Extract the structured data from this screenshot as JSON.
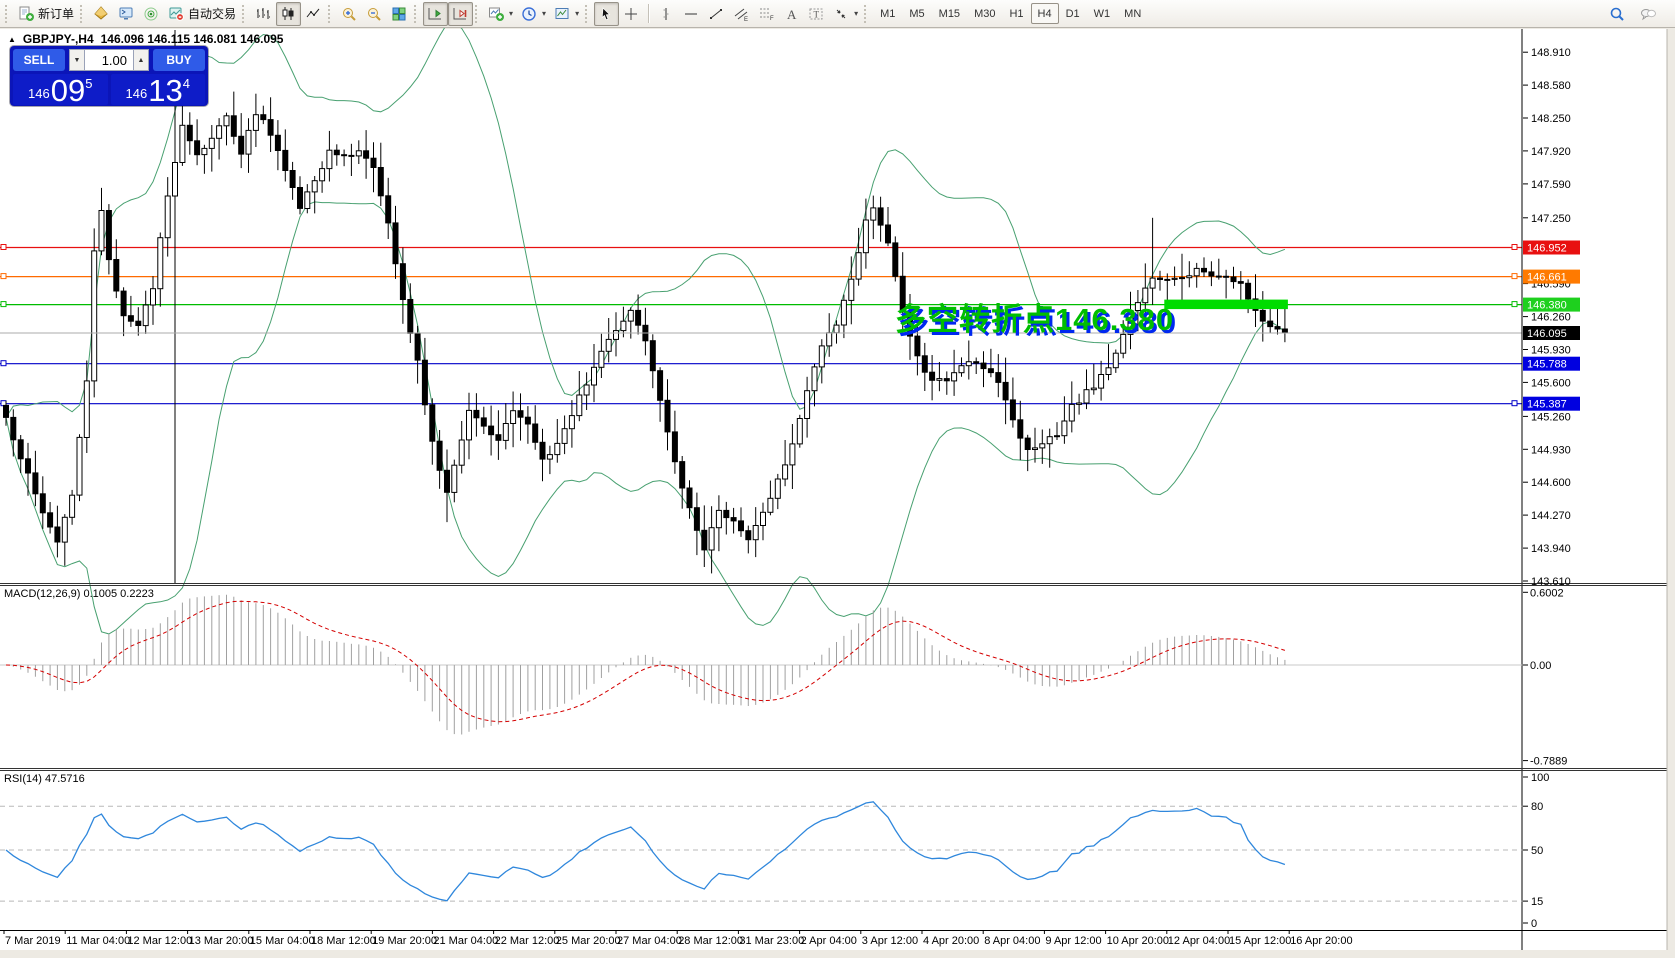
{
  "toolbar": {
    "groups": [
      {
        "name": "orders",
        "items": [
          {
            "icon": "new-order",
            "name": "new-order-button",
            "label": "新订单"
          }
        ]
      },
      {
        "name": "services",
        "items": [
          {
            "icon": "profile",
            "name": "profiles-button"
          },
          {
            "icon": "terminal",
            "name": "terminal-button"
          },
          {
            "icon": "signals",
            "name": "signals-button"
          },
          {
            "icon": "autotrade",
            "name": "autotrade-button",
            "label": "自动交易"
          }
        ]
      },
      {
        "name": "chart-types",
        "items": [
          {
            "icon": "bars",
            "name": "bar-chart-button"
          },
          {
            "icon": "candles",
            "name": "candlestick-chart-button",
            "active": true
          },
          {
            "icon": "line-chart",
            "name": "line-chart-button"
          }
        ]
      },
      {
        "name": "zoom",
        "items": [
          {
            "icon": "zoom-in",
            "name": "zoom-in-button"
          },
          {
            "icon": "zoom-out",
            "name": "zoom-out-button"
          },
          {
            "icon": "tile-windows",
            "name": "tile-windows-button"
          }
        ]
      },
      {
        "name": "scroll",
        "items": [
          {
            "icon": "auto-scroll",
            "name": "auto-scroll-button",
            "active": true
          },
          {
            "icon": "chart-shift",
            "name": "chart-shift-button",
            "active": true
          }
        ]
      },
      {
        "name": "objects",
        "items": [
          {
            "icon": "indicators",
            "name": "indicators-button",
            "caret": true
          },
          {
            "icon": "periods",
            "name": "periods-button",
            "caret": true
          },
          {
            "icon": "templates",
            "name": "templates-button",
            "caret": true
          }
        ]
      },
      {
        "name": "drawing",
        "items": [
          {
            "icon": "cursor",
            "name": "cursor-button",
            "active": true
          },
          {
            "icon": "crosshair",
            "name": "crosshair-button"
          },
          {
            "icon": "sep"
          },
          {
            "icon": "vline-tool",
            "name": "vertical-line-tool-button"
          },
          {
            "icon": "hline-tool",
            "name": "horizontal-line-tool-button"
          },
          {
            "icon": "trendline-tool",
            "name": "trendline-tool-button"
          },
          {
            "icon": "channel-tool",
            "name": "equidistant-channel-button"
          },
          {
            "icon": "fibo-tool",
            "name": "fibonacci-button"
          },
          {
            "icon": "text-tool",
            "name": "text-button"
          },
          {
            "icon": "label-tool",
            "name": "text-label-button"
          },
          {
            "icon": "arrows-tool",
            "name": "arrows-button",
            "caret": true
          }
        ]
      }
    ],
    "timeframes": [
      "M1",
      "M5",
      "M15",
      "M30",
      "H1",
      "H4",
      "D1",
      "W1",
      "MN"
    ],
    "active_timeframe": "H4",
    "right_items": [
      {
        "icon": "search",
        "name": "search-button"
      },
      {
        "icon": "chat",
        "name": "chat-button"
      }
    ]
  },
  "chart_header": {
    "collapse_icon": "▲",
    "title": "GBPJPY-,H4",
    "ohlc": "146.096 146.115 146.081 146.095"
  },
  "trade_panel": {
    "sell_label": "SELL",
    "buy_label": "BUY",
    "volume": "1.00",
    "volume_down_icon": "▼",
    "volume_up_icon": "▲",
    "sell_price": {
      "prefix": "146",
      "big": "09",
      "sup": "5"
    },
    "buy_price": {
      "prefix": "146",
      "big": "13",
      "sup": "4"
    }
  },
  "panels": {
    "macd": {
      "label": "MACD(12,26,9) 0.1005 0.2223"
    },
    "rsi": {
      "label": "RSI(14) 47.5716"
    }
  },
  "chart_data": {
    "type": "candlestick",
    "symbol": "GBPJPY-",
    "timeframe": "H4",
    "ohlc_display": {
      "open": "146.096",
      "high": "146.115",
      "low": "146.081",
      "close": "146.095"
    },
    "price_axis": {
      "ylim": [
        143.59,
        149.132
      ],
      "ticks": [
        "148.910",
        "148.580",
        "148.250",
        "147.920",
        "147.590",
        "147.250",
        "146.920",
        "146.590",
        "146.260",
        "145.930",
        "145.600",
        "145.260",
        "144.930",
        "144.600",
        "144.270",
        "143.940",
        "143.610"
      ]
    },
    "time_axis": {
      "labels": [
        "7 Mar 2019",
        "11 Mar 04:00",
        "12 Mar 12:00",
        "13 Mar 20:00",
        "15 Mar 04:00",
        "18 Mar 12:00",
        "19 Mar 20:00",
        "21 Mar 04:00",
        "22 Mar 12:00",
        "25 Mar 20:00",
        "27 Mar 04:00",
        "28 Mar 12:00",
        "31 Mar 23:00",
        "2 Apr 04:00",
        "3 Apr 12:00",
        "4 Apr 20:00",
        "8 Apr 04:00",
        "9 Apr 12:00",
        "10 Apr 20:00",
        "12 Apr 04:00",
        "15 Apr 12:00",
        "16 Apr 20:00"
      ]
    },
    "candle_count": 175,
    "close_anchors": [
      [
        0,
        145.25
      ],
      [
        2,
        144.85
      ],
      [
        5,
        144.3
      ],
      [
        7,
        143.98
      ],
      [
        9,
        144.45
      ],
      [
        11,
        145.6
      ],
      [
        12,
        146.9
      ],
      [
        13,
        147.3
      ],
      [
        14,
        146.8
      ],
      [
        16,
        146.3
      ],
      [
        18,
        146.15
      ],
      [
        20,
        146.55
      ],
      [
        22,
        147.5
      ],
      [
        24,
        148.15
      ],
      [
        26,
        147.9
      ],
      [
        28,
        148.05
      ],
      [
        30,
        148.25
      ],
      [
        32,
        147.9
      ],
      [
        34,
        148.3
      ],
      [
        36,
        148.1
      ],
      [
        38,
        147.75
      ],
      [
        40,
        147.35
      ],
      [
        42,
        147.6
      ],
      [
        44,
        147.9
      ],
      [
        46,
        147.85
      ],
      [
        48,
        147.9
      ],
      [
        50,
        147.75
      ],
      [
        52,
        147.2
      ],
      [
        54,
        146.4
      ],
      [
        56,
        145.8
      ],
      [
        58,
        145.0
      ],
      [
        60,
        144.5
      ],
      [
        62,
        145.0
      ],
      [
        63,
        145.35
      ],
      [
        65,
        145.15
      ],
      [
        67,
        145.05
      ],
      [
        69,
        145.35
      ],
      [
        71,
        145.2
      ],
      [
        73,
        144.8
      ],
      [
        75,
        145.0
      ],
      [
        77,
        145.3
      ],
      [
        79,
        145.6
      ],
      [
        81,
        145.9
      ],
      [
        83,
        146.15
      ],
      [
        85,
        146.3
      ],
      [
        87,
        146.0
      ],
      [
        88,
        145.7
      ],
      [
        90,
        145.1
      ],
      [
        92,
        144.55
      ],
      [
        94,
        144.1
      ],
      [
        95,
        143.95
      ],
      [
        97,
        144.35
      ],
      [
        99,
        144.2
      ],
      [
        101,
        144.0
      ],
      [
        103,
        144.3
      ],
      [
        105,
        144.6
      ],
      [
        107,
        145.0
      ],
      [
        109,
        145.5
      ],
      [
        111,
        146.0
      ],
      [
        113,
        146.2
      ],
      [
        115,
        146.6
      ],
      [
        117,
        147.2
      ],
      [
        118,
        147.35
      ],
      [
        120,
        147.0
      ],
      [
        122,
        146.3
      ],
      [
        124,
        145.85
      ],
      [
        126,
        145.6
      ],
      [
        128,
        145.65
      ],
      [
        130,
        145.75
      ],
      [
        132,
        145.8
      ],
      [
        134,
        145.7
      ],
      [
        136,
        145.45
      ],
      [
        138,
        145.05
      ],
      [
        139,
        144.95
      ],
      [
        141,
        145.0
      ],
      [
        143,
        145.1
      ],
      [
        145,
        145.35
      ],
      [
        147,
        145.5
      ],
      [
        149,
        145.65
      ],
      [
        151,
        145.9
      ],
      [
        153,
        146.3
      ],
      [
        155,
        146.55
      ],
      [
        156,
        146.65
      ],
      [
        158,
        146.6
      ],
      [
        160,
        146.65
      ],
      [
        162,
        146.75
      ],
      [
        164,
        146.7
      ],
      [
        166,
        146.65
      ],
      [
        168,
        146.6
      ],
      [
        170,
        146.3
      ],
      [
        172,
        146.15
      ],
      [
        174,
        146.095
      ]
    ],
    "high_overrides": [
      [
        13,
        147.55
      ],
      [
        24,
        148.48
      ],
      [
        34,
        148.42
      ],
      [
        118,
        147.45
      ],
      [
        156,
        147.25
      ]
    ],
    "low_overrides": [
      [
        7,
        143.9
      ],
      [
        60,
        144.2
      ],
      [
        95,
        143.75
      ],
      [
        102,
        143.85
      ]
    ],
    "indicators": {
      "bollinger": {
        "period": 20,
        "deviation": 2,
        "color": "#48A070"
      },
      "macd": {
        "fast": 12,
        "slow": 26,
        "signal": 9,
        "values_text": "0.1005 0.2223",
        "hist_color": "#A0A0A0",
        "signal_color": "#D40000",
        "scale": [
          {
            "v": 0.6002,
            "t": "0.6002"
          },
          {
            "v": 0,
            "t": "0.00"
          },
          {
            "v": -0.7889,
            "t": "-0.7889"
          }
        ]
      },
      "rsi": {
        "period": 14,
        "value_text": "47.5716",
        "color": "#2F87DC",
        "scale": [
          {
            "v": 100,
            "t": "100"
          },
          {
            "v": 80,
            "t": "80",
            "line": true
          },
          {
            "v": 50,
            "t": "50",
            "line": true
          },
          {
            "v": 15,
            "t": "15",
            "line": true
          },
          {
            "v": 0,
            "t": "0"
          }
        ]
      }
    },
    "overlays": {
      "hlines": [
        {
          "price": 146.952,
          "label": "146.952",
          "line": "#E81010",
          "bg": "#E81010",
          "right_handle": true
        },
        {
          "price": 146.661,
          "label": "146.661",
          "line": "#FF6A00",
          "bg": "#FF7A00",
          "right_handle": true
        },
        {
          "price": 146.38,
          "label": "146.380",
          "line": "#00BC00",
          "bg": "#1ED01E",
          "right_handle": true
        },
        {
          "price": 145.788,
          "label": "145.788",
          "line": "#0000C8",
          "bg": "#0000E0",
          "right_handle": false
        },
        {
          "price": 145.387,
          "label": "145.387",
          "line": "#0000C8",
          "bg": "#0000E0",
          "right_handle": true
        }
      ],
      "current_price": {
        "price": 146.095,
        "label": "146.095",
        "line": "#ABABAB",
        "bg": "#000000"
      },
      "highlight_band": {
        "i0": 158,
        "i1": 174,
        "top": 146.43,
        "bottom": 146.335,
        "color": "#00DC00"
      },
      "vline_index": 23,
      "annotation_text": "多空转折点146.380"
    }
  }
}
